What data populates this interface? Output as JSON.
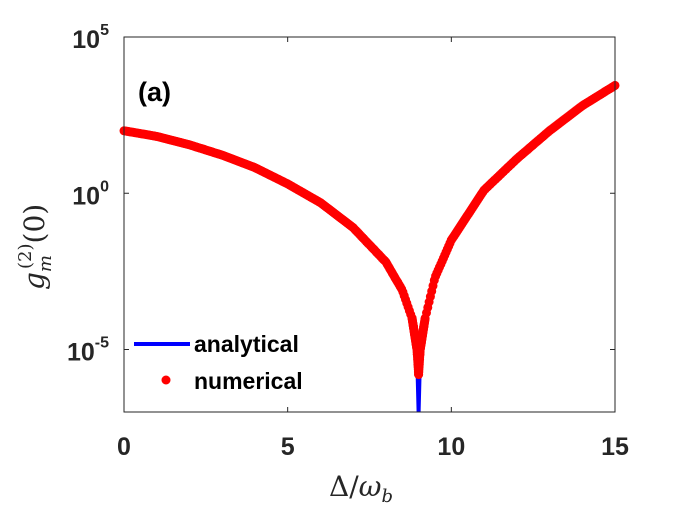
{
  "chart_data": {
    "type": "line",
    "panel_label": "(a)",
    "xlabel": "Δ/ω_b",
    "ylabel": "g_m^(2)(0)",
    "xlim": [
      0,
      15
    ],
    "ylim_log10": [
      -7,
      5
    ],
    "y_scale": "log",
    "grid": false,
    "legend_placement": "bottom-left",
    "x_ticks": [
      0,
      5,
      10,
      15
    ],
    "x_tick_labels": [
      "0",
      "5",
      "10",
      "15"
    ],
    "y_ticks_log10": [
      -5,
      0,
      5
    ],
    "y_tick_bases": [
      "10",
      "10",
      "10"
    ],
    "y_tick_exponents": [
      "-5",
      "0",
      "5"
    ],
    "series": [
      {
        "name": "analytical",
        "style": "line",
        "color": "#0000ff",
        "x": [
          0,
          1,
          2,
          3,
          4,
          5,
          6,
          7,
          8,
          8.5,
          8.8,
          8.95,
          9.0,
          9.05,
          9.2,
          9.5,
          10,
          11,
          12,
          13,
          14,
          15
        ],
        "y_log10": [
          2.0,
          1.82,
          1.55,
          1.22,
          0.82,
          0.3,
          -0.3,
          -1.1,
          -2.2,
          -3.1,
          -4.0,
          -5.0,
          -7.0,
          -5.0,
          -4.0,
          -2.7,
          -1.5,
          0.1,
          1.1,
          2.0,
          2.8,
          3.45
        ]
      },
      {
        "name": "numerical",
        "style": "markers",
        "color": "#ff0000",
        "x": [
          0,
          1,
          2,
          3,
          4,
          5,
          6,
          7,
          8,
          8.5,
          8.8,
          8.95,
          9.0,
          9.05,
          9.2,
          9.5,
          10,
          11,
          12,
          13,
          14,
          15
        ],
        "y_log10": [
          2.0,
          1.82,
          1.55,
          1.22,
          0.82,
          0.3,
          -0.3,
          -1.1,
          -2.2,
          -3.1,
          -4.0,
          -5.0,
          -5.8,
          -5.0,
          -4.0,
          -2.7,
          -1.5,
          0.1,
          1.1,
          2.0,
          2.8,
          3.45
        ]
      }
    ]
  }
}
